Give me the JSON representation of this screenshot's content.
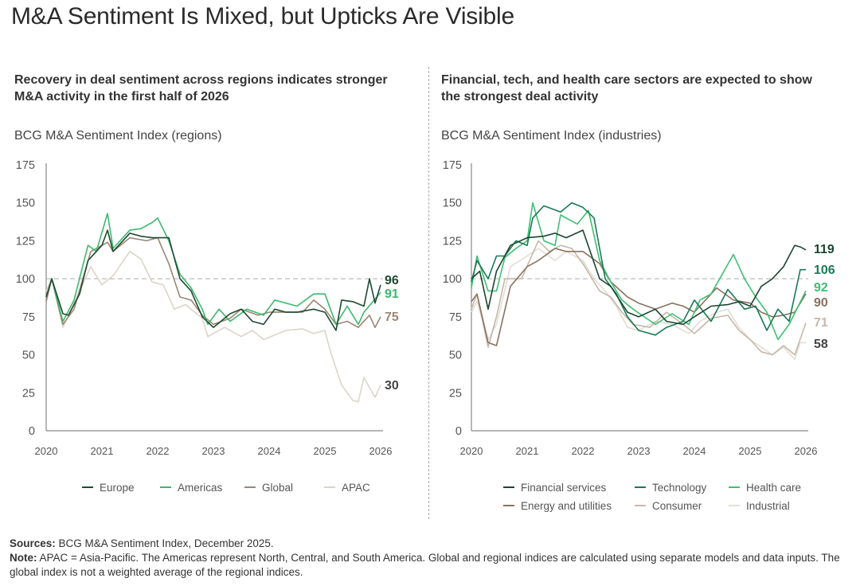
{
  "title": "M&A Sentiment Is Mixed, but Upticks Are Visible",
  "divider": true,
  "footer": {
    "sources_label": "Sources:",
    "sources_text": "BCG M&A Sentiment Index, December 2025.",
    "note_label": "Note:",
    "note_text": "APAC = Asia-Pacific. The Americas represent North, Central, and South America. Global and regional indices are calculated using separate models and data inputs. The global index is not a weighted average of the regional indices."
  },
  "chart_data": [
    {
      "type": "line",
      "subtitle": "Recovery in deal sentiment across regions indicates stronger M&A activity in the first half of 2026",
      "title": "BCG M&A Sentiment Index (regions)",
      "xlabel": "",
      "ylabel": "",
      "xlim": [
        2020,
        2026
      ],
      "ylim": [
        0,
        175
      ],
      "xticks": [
        "2020",
        "2021",
        "2022",
        "2023",
        "2024",
        "2025",
        "2026"
      ],
      "yticks": [
        "0",
        "25",
        "50",
        "75",
        "100",
        "125",
        "150",
        "175"
      ],
      "reference_line": 100,
      "legend_position": "bottom",
      "series": [
        {
          "name": "Europe",
          "color": "#1f4a33",
          "end_label": "96",
          "label_color": "#1f4a33",
          "x": [
            2020,
            2020.1,
            2020.3,
            2020.4,
            2020.6,
            2020.75,
            2021,
            2021.1,
            2021.2,
            2021.5,
            2021.7,
            2021.9,
            2022.2,
            2022.4,
            2022.6,
            2022.8,
            2023,
            2023.3,
            2023.5,
            2023.7,
            2023.9,
            2024.1,
            2024.3,
            2024.5,
            2024.8,
            2025,
            2025.2,
            2025.3,
            2025.5,
            2025.7,
            2025.8,
            2025.9,
            2026
          ],
          "y": [
            88,
            100,
            77,
            76,
            90,
            112,
            122,
            132,
            118,
            130,
            128,
            127,
            127,
            100,
            92,
            75,
            68,
            77,
            80,
            72,
            70,
            80,
            78,
            78,
            80,
            78,
            66,
            86,
            85,
            82,
            100,
            84,
            96
          ]
        },
        {
          "name": "Americas",
          "color": "#3cb96b",
          "end_label": "91",
          "label_color": "#3cb96b",
          "x": [
            2020,
            2020.1,
            2020.3,
            2020.5,
            2020.75,
            2020.9,
            2021.1,
            2021.2,
            2021.5,
            2021.7,
            2021.9,
            2022,
            2022.2,
            2022.4,
            2022.6,
            2022.8,
            2022.9,
            2023.1,
            2023.3,
            2023.6,
            2023.9,
            2024.1,
            2024.5,
            2024.8,
            2025,
            2025.2,
            2025.4,
            2025.6,
            2025.7,
            2026
          ],
          "y": [
            88,
            100,
            72,
            86,
            122,
            118,
            143,
            120,
            132,
            133,
            137,
            140,
            125,
            103,
            94,
            80,
            70,
            80,
            72,
            80,
            76,
            86,
            82,
            90,
            90,
            70,
            82,
            70,
            78,
            91
          ]
        },
        {
          "name": "Global",
          "color": "#9c8672",
          "end_label": "75",
          "label_color": "#9c8672",
          "x": [
            2020,
            2020.1,
            2020.3,
            2020.5,
            2020.8,
            2021,
            2021.1,
            2021.2,
            2021.5,
            2021.8,
            2022,
            2022.2,
            2022.4,
            2022.6,
            2022.8,
            2023,
            2023.3,
            2023.5,
            2023.8,
            2024,
            2024.3,
            2024.6,
            2024.8,
            2025,
            2025.2,
            2025.4,
            2025.6,
            2025.8,
            2025.9,
            2026
          ],
          "y": [
            85,
            100,
            70,
            80,
            118,
            122,
            124,
            118,
            127,
            125,
            127,
            110,
            88,
            86,
            76,
            70,
            74,
            80,
            76,
            78,
            78,
            78,
            86,
            80,
            70,
            72,
            68,
            76,
            68,
            75
          ]
        },
        {
          "name": "APAC",
          "color": "#ddd4c9",
          "end_label": "30",
          "label_color": "#444444",
          "x": [
            2020,
            2020.1,
            2020.3,
            2020.6,
            2020.8,
            2021,
            2021.2,
            2021.5,
            2021.7,
            2021.9,
            2022.1,
            2022.3,
            2022.5,
            2022.8,
            2022.9,
            2023.2,
            2023.5,
            2023.7,
            2023.9,
            2024.3,
            2024.6,
            2024.8,
            2025,
            2025.1,
            2025.3,
            2025.5,
            2025.6,
            2025.7,
            2025.9,
            2026
          ],
          "y": [
            92,
            100,
            68,
            92,
            108,
            96,
            102,
            118,
            113,
            98,
            96,
            80,
            83,
            74,
            62,
            68,
            62,
            66,
            60,
            66,
            67,
            64,
            66,
            52,
            30,
            20,
            19,
            35,
            22,
            30
          ]
        }
      ]
    },
    {
      "type": "line",
      "subtitle": "Financial, tech, and health care sectors are expected to show the strongest deal activity",
      "title": "BCG M&A Sentiment Index (industries)",
      "xlabel": "",
      "ylabel": "",
      "xlim": [
        2020,
        2026
      ],
      "ylim": [
        0,
        175
      ],
      "xticks": [
        "2020",
        "2021",
        "2022",
        "2023",
        "2024",
        "2025",
        "2026"
      ],
      "yticks": [
        "0",
        "25",
        "50",
        "75",
        "100",
        "125",
        "150",
        "175"
      ],
      "reference_line": 100,
      "legend_position": "bottom",
      "series": [
        {
          "name": "Financial services",
          "color": "#1c4630",
          "end_label": "119",
          "label_color": "#1c4630",
          "x": [
            2020,
            2020.15,
            2020.3,
            2020.45,
            2020.7,
            2021,
            2021.3,
            2021.5,
            2021.7,
            2022,
            2022.3,
            2022.5,
            2022.8,
            2023,
            2023.3,
            2023.5,
            2023.8,
            2024,
            2024.3,
            2024.6,
            2024.8,
            2025,
            2025.2,
            2025.4,
            2025.6,
            2025.8,
            2025.9,
            2026
          ],
          "y": [
            100,
            105,
            80,
            105,
            122,
            127,
            128,
            130,
            127,
            132,
            100,
            95,
            78,
            75,
            80,
            72,
            70,
            75,
            82,
            83,
            85,
            82,
            95,
            100,
            108,
            122,
            121,
            119
          ]
        },
        {
          "name": "Technology",
          "color": "#1a7a55",
          "end_label": "106",
          "label_color": "#1a7a55",
          "x": [
            2020,
            2020.1,
            2020.3,
            2020.45,
            2020.6,
            2020.8,
            2021,
            2021.1,
            2021.3,
            2021.6,
            2021.8,
            2022,
            2022.2,
            2022.4,
            2022.6,
            2022.8,
            2023,
            2023.3,
            2023.5,
            2023.8,
            2024,
            2024.3,
            2024.6,
            2024.9,
            2025.1,
            2025.3,
            2025.5,
            2025.7,
            2025.9,
            2026
          ],
          "y": [
            98,
            112,
            100,
            115,
            115,
            125,
            122,
            140,
            148,
            144,
            150,
            147,
            140,
            100,
            90,
            75,
            66,
            63,
            68,
            72,
            86,
            72,
            93,
            80,
            82,
            66,
            80,
            72,
            106,
            106
          ]
        },
        {
          "name": "Health care",
          "color": "#3dc070",
          "end_label": "92",
          "label_color": "#3dc070",
          "x": [
            2020,
            2020.1,
            2020.3,
            2020.45,
            2020.6,
            2020.8,
            2021,
            2021.1,
            2021.3,
            2021.5,
            2021.6,
            2021.9,
            2022.1,
            2022.3,
            2022.5,
            2022.7,
            2022.9,
            2023.3,
            2023.6,
            2023.9,
            2024.1,
            2024.3,
            2024.7,
            2024.9,
            2025.1,
            2025.3,
            2025.5,
            2025.7,
            2026
          ],
          "y": [
            94,
            115,
            92,
            92,
            114,
            120,
            125,
            150,
            125,
            122,
            142,
            136,
            145,
            112,
            98,
            86,
            80,
            70,
            77,
            70,
            86,
            90,
            116,
            100,
            88,
            78,
            60,
            70,
            92
          ]
        },
        {
          "name": "Energy and utilities",
          "color": "#8a7260",
          "end_label": "90",
          "label_color": "#8a7260",
          "x": [
            2020,
            2020.1,
            2020.3,
            2020.45,
            2020.7,
            2021,
            2021.2,
            2021.5,
            2021.7,
            2022,
            2022.3,
            2022.5,
            2022.8,
            2023,
            2023.3,
            2023.6,
            2023.8,
            2024,
            2024.4,
            2024.7,
            2025,
            2025.2,
            2025.4,
            2025.6,
            2025.8,
            2026
          ],
          "y": [
            85,
            90,
            58,
            56,
            95,
            108,
            112,
            120,
            118,
            118,
            110,
            98,
            88,
            84,
            80,
            84,
            82,
            78,
            94,
            86,
            84,
            78,
            75,
            76,
            78,
            90
          ]
        },
        {
          "name": "Consumer",
          "color": "#c5b8a8",
          "end_label": "71",
          "label_color": "#c5b8a8",
          "x": [
            2020,
            2020.1,
            2020.3,
            2020.45,
            2020.6,
            2020.9,
            2021.2,
            2021.4,
            2021.6,
            2021.8,
            2022,
            2022.3,
            2022.5,
            2022.7,
            2022.9,
            2023.2,
            2023.5,
            2023.8,
            2024,
            2024.3,
            2024.6,
            2024.8,
            2025,
            2025.2,
            2025.4,
            2025.6,
            2025.8,
            2026
          ],
          "y": [
            80,
            90,
            55,
            75,
            100,
            100,
            125,
            118,
            122,
            120,
            110,
            92,
            88,
            78,
            70,
            68,
            78,
            70,
            64,
            74,
            76,
            66,
            60,
            52,
            50,
            56,
            50,
            71
          ]
        },
        {
          "name": "Industrial",
          "color": "#e3ddd4",
          "end_label": "58",
          "label_color": "#444444",
          "x": [
            2020,
            2020.1,
            2020.3,
            2020.45,
            2020.7,
            2021,
            2021.2,
            2021.5,
            2021.7,
            2022,
            2022.2,
            2022.4,
            2022.6,
            2022.8,
            2023,
            2023.3,
            2023.6,
            2023.9,
            2024.1,
            2024.4,
            2024.6,
            2024.8,
            2025,
            2025.2,
            2025.4,
            2025.6,
            2025.8,
            2025.9,
            2026
          ],
          "y": [
            78,
            85,
            60,
            70,
            108,
            115,
            120,
            112,
            118,
            112,
            100,
            92,
            82,
            68,
            66,
            72,
            70,
            64,
            72,
            78,
            80,
            68,
            60,
            55,
            50,
            55,
            47,
            58,
            58
          ]
        }
      ]
    }
  ]
}
